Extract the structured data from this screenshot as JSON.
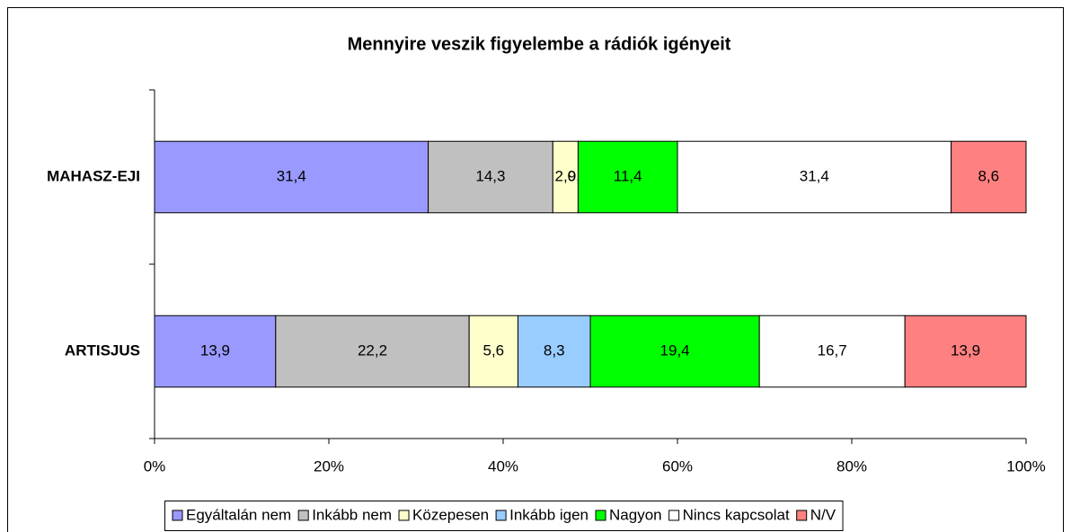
{
  "chart_data": {
    "type": "stacked_bar_horizontal",
    "title": "Mennyire veszik figyelembe a rádiók igényeit",
    "categories": [
      "MAHASZ-EJI",
      "ARTISJUS"
    ],
    "series": [
      {
        "name": "Egyáltalán nem",
        "color": "#9999ff",
        "values": [
          31.4,
          13.9
        ],
        "value_labels": [
          "31,4",
          "13,9"
        ]
      },
      {
        "name": "Inkább nem",
        "color": "#c0c0c0",
        "values": [
          14.3,
          22.2
        ],
        "value_labels": [
          "14,3",
          "22,2"
        ]
      },
      {
        "name": "Közepesen",
        "color": "#ffffcc",
        "values": [
          2.9,
          5.6
        ],
        "value_labels": [
          "2,9",
          "5,6"
        ]
      },
      {
        "name": "Inkább igen",
        "color": "#99ccff",
        "values": [
          0,
          8.3
        ],
        "value_labels": [
          "0,0",
          "8,3"
        ]
      },
      {
        "name": "Nagyon",
        "color": "#00ff00",
        "values": [
          11.4,
          19.4
        ],
        "value_labels": [
          "11,4",
          "19,4"
        ]
      },
      {
        "name": "Nincs kapcsolat",
        "color": "#ffffff",
        "values": [
          31.4,
          16.7
        ],
        "value_labels": [
          "31,4",
          "16,7"
        ]
      },
      {
        "name": "N/V",
        "color": "#ff8080",
        "values": [
          8.6,
          13.9
        ],
        "value_labels": [
          "8,6",
          "13,9"
        ]
      }
    ],
    "xlim": [
      0,
      100
    ],
    "xticks": [
      {
        "value": 0,
        "label": "0%"
      },
      {
        "value": 20,
        "label": "20%"
      },
      {
        "value": 40,
        "label": "40%"
      },
      {
        "value": 60,
        "label": "60%"
      },
      {
        "value": 80,
        "label": "80%"
      },
      {
        "value": 100,
        "label": "100%"
      }
    ],
    "legend": "bottom"
  }
}
